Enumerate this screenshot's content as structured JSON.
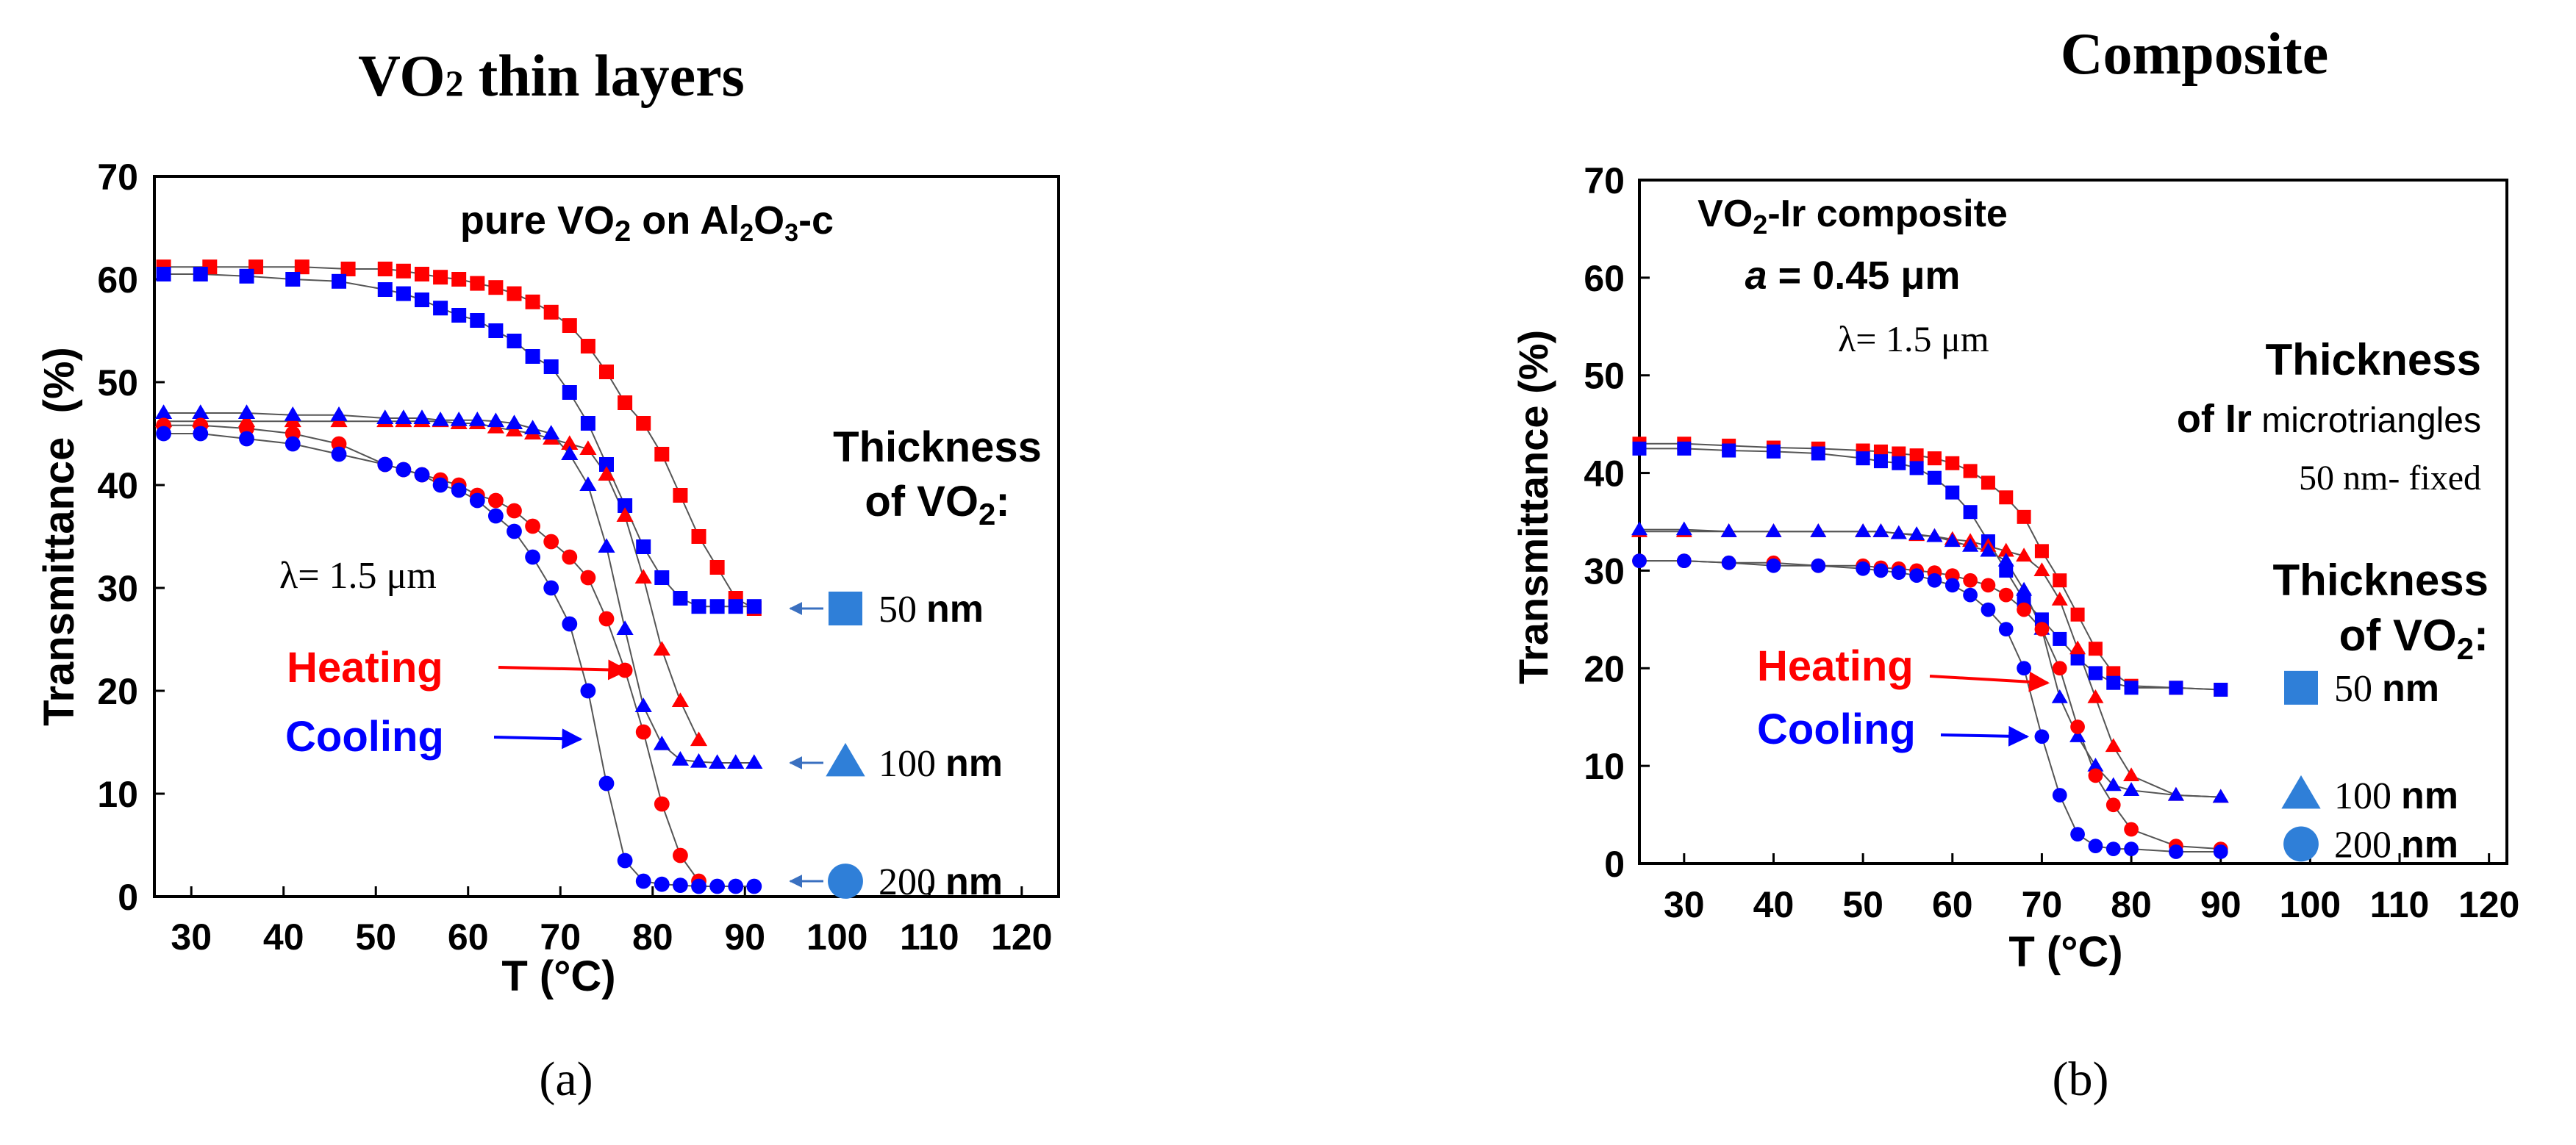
{
  "colors": {
    "heating": "#ff0000",
    "cooling": "#0000ff",
    "legend_marker": "#2f7fd8",
    "legend_arrow": "#3a70c0",
    "connector": "#555555",
    "axis": "#000000"
  },
  "chart_data": [
    {
      "type": "scatter",
      "panel_title_main": "VO",
      "panel_title_sub": "2",
      "panel_title_rest": " thin layers",
      "panel_label": "(a)",
      "xlabel": "T (°C)",
      "ylabel": "Transmittance  (%)",
      "xlim": [
        26,
        124
      ],
      "ylim": [
        0,
        70
      ],
      "x_ticks": [
        30,
        40,
        50,
        60,
        70,
        80,
        90,
        100,
        110,
        120
      ],
      "y_ticks": [
        0,
        10,
        20,
        30,
        40,
        50,
        60,
        70
      ],
      "annotation_main": "pure VO",
      "annotation_sub2": "2",
      "annotation_mid": " on Al",
      "annotation_sub2b": "2",
      "annotation_o": "O",
      "annotation_sub3": "3",
      "annotation_end": "-c",
      "lambda_label": "λ= 1.5 μm",
      "heating_label": "Heating",
      "cooling_label": "Cooling",
      "thickness_title_1": "Thickness",
      "thickness_title_2": "of VO",
      "thickness_title_sub": "2",
      "thickness_title_end": ":",
      "legend": [
        {
          "marker": "square",
          "label": "50 nm",
          "y": 28
        },
        {
          "marker": "triangle",
          "label": "100 nm",
          "y": 13
        },
        {
          "marker": "circle",
          "label": "200 nm",
          "y": 1.5
        }
      ],
      "heating_arrow_target": [
        78.3,
        22
      ],
      "cooling_arrow_target": [
        73.3,
        15.3
      ],
      "series": [
        {
          "name": "50 nm heating",
          "marker": "square",
          "color": "heating",
          "x": [
            27,
            32,
            37,
            42,
            47,
            51,
            53,
            55,
            57,
            59,
            61,
            63,
            65,
            67,
            69,
            71,
            73,
            75,
            77,
            79,
            81,
            83,
            85,
            87,
            89,
            91
          ],
          "y": [
            61.2,
            61.2,
            61.2,
            61.2,
            61,
            61,
            60.8,
            60.5,
            60.2,
            60,
            59.6,
            59.2,
            58.6,
            57.8,
            56.8,
            55.5,
            53.5,
            51,
            48,
            46,
            43,
            39,
            35,
            32,
            29,
            28
          ]
        },
        {
          "name": "50 nm cooling",
          "marker": "square",
          "color": "cooling",
          "x": [
            27,
            31,
            36,
            41,
            46,
            51,
            53,
            55,
            57,
            59,
            61,
            63,
            65,
            67,
            69,
            71,
            73,
            75,
            77,
            79,
            81,
            83,
            85,
            87,
            89,
            91
          ],
          "y": [
            60.5,
            60.5,
            60.3,
            60,
            59.8,
            59,
            58.6,
            58,
            57.2,
            56.5,
            56,
            55,
            54,
            52.5,
            51.5,
            49,
            46,
            42,
            38,
            34,
            31,
            29,
            28.2,
            28.2,
            28.2,
            28.2
          ]
        },
        {
          "name": "100 nm heating",
          "marker": "triangle",
          "color": "heating",
          "x": [
            27,
            31,
            36,
            41,
            46,
            51,
            53,
            55,
            57,
            59,
            61,
            63,
            65,
            67,
            69,
            71,
            73,
            75,
            77,
            79,
            81,
            83,
            85
          ],
          "y": [
            46.2,
            46.2,
            46.2,
            46.2,
            46.2,
            46.2,
            46.2,
            46.2,
            46.2,
            46,
            46,
            45.6,
            45.3,
            45,
            44.5,
            44,
            43.5,
            41,
            37,
            31,
            24,
            19,
            15.2
          ]
        },
        {
          "name": "100 nm cooling",
          "marker": "triangle",
          "color": "cooling",
          "x": [
            27,
            31,
            36,
            41,
            46,
            51,
            53,
            55,
            57,
            59,
            61,
            63,
            65,
            67,
            69,
            71,
            73,
            75,
            77,
            79,
            81,
            83,
            85,
            87,
            89,
            91
          ],
          "y": [
            47,
            47,
            47,
            46.8,
            46.8,
            46.5,
            46.5,
            46.5,
            46.3,
            46.3,
            46.3,
            46.2,
            46,
            45.5,
            45,
            43,
            40,
            34,
            26,
            18.5,
            14.8,
            13.3,
            13.1,
            13,
            13,
            13
          ]
        },
        {
          "name": "200 nm heating",
          "marker": "circle",
          "color": "heating",
          "x": [
            27,
            31,
            36,
            41,
            46,
            51,
            53,
            55,
            57,
            59,
            61,
            63,
            65,
            67,
            69,
            71,
            73,
            75,
            77,
            79,
            81,
            83,
            85
          ],
          "y": [
            45.8,
            45.8,
            45.5,
            45,
            44,
            42,
            41.5,
            41,
            40.5,
            40,
            39,
            38.5,
            37.5,
            36,
            34.5,
            33,
            31,
            27,
            22,
            16,
            9,
            4,
            1.5
          ]
        },
        {
          "name": "200 nm cooling",
          "marker": "circle",
          "color": "cooling",
          "x": [
            27,
            31,
            36,
            41,
            46,
            51,
            53,
            55,
            57,
            59,
            61,
            63,
            65,
            67,
            69,
            71,
            73,
            75,
            77,
            79,
            81,
            83,
            85,
            87,
            89,
            91
          ],
          "y": [
            45,
            45,
            44.5,
            44,
            43,
            42,
            41.5,
            41,
            40,
            39.5,
            38.5,
            37,
            35.5,
            33,
            30,
            26.5,
            20,
            11,
            3.5,
            1.5,
            1.2,
            1.1,
            1,
            1,
            1,
            1
          ]
        }
      ]
    },
    {
      "type": "scatter",
      "panel_title": "Composite",
      "panel_label": "(b)",
      "xlabel": "T (°C)",
      "ylabel": "Transmittance (%)",
      "xlim": [
        25,
        122
      ],
      "ylim": [
        0,
        70
      ],
      "x_ticks": [
        30,
        40,
        50,
        60,
        70,
        80,
        90,
        100,
        110,
        120
      ],
      "y_ticks": [
        0,
        10,
        20,
        30,
        40,
        50,
        60,
        70
      ],
      "annotation_main": "VO",
      "annotation_sub": "2",
      "annotation_end": "-Ir composite",
      "a_italic": "a",
      "a_value": " = 0.45 μm",
      "lambda_label": "λ= 1.5 μm",
      "thickness_ir_title": "Thickness",
      "thickness_ir_line2_a": "of Ir",
      "thickness_ir_line2_b": " microtriangles",
      "thickness_ir_line3": "50 nm- fixed",
      "heating_label": "Heating",
      "cooling_label": "Cooling",
      "thickness_title_1": "Thickness",
      "thickness_title_2": "of VO",
      "thickness_title_sub": "2",
      "thickness_title_end": ":",
      "legend": [
        {
          "marker": "square",
          "label": "50 nm",
          "y": 18
        },
        {
          "marker": "triangle",
          "label": "100 nm",
          "y": 7
        },
        {
          "marker": "circle",
          "label": "200 nm",
          "y": 2
        }
      ],
      "heating_arrow_target": [
        71.8,
        18.5
      ],
      "cooling_arrow_target": [
        69.5,
        13
      ],
      "series": [
        {
          "name": "50 nm heating",
          "marker": "square",
          "color": "heating",
          "x": [
            25,
            30,
            35,
            40,
            45,
            50,
            52,
            54,
            56,
            58,
            60,
            62,
            64,
            66,
            68,
            70,
            72,
            74,
            76,
            78,
            80,
            85,
            90
          ],
          "y": [
            43,
            43,
            42.8,
            42.6,
            42.5,
            42.3,
            42.2,
            42,
            41.8,
            41.5,
            41,
            40.2,
            39,
            37.5,
            35.5,
            32,
            29,
            25.5,
            22,
            19.5,
            18.2,
            18,
            17.8
          ]
        },
        {
          "name": "50 nm cooling",
          "marker": "square",
          "color": "cooling",
          "x": [
            25,
            30,
            35,
            40,
            45,
            50,
            52,
            54,
            56,
            58,
            60,
            62,
            64,
            66,
            68,
            70,
            72,
            74,
            76,
            78,
            80,
            85,
            90
          ],
          "y": [
            42.5,
            42.5,
            42.3,
            42.2,
            42,
            41.5,
            41.2,
            41,
            40.5,
            39.5,
            38,
            36,
            33,
            30,
            27,
            25,
            23,
            21,
            19.5,
            18.5,
            18,
            18,
            17.8
          ]
        },
        {
          "name": "100 nm heating",
          "marker": "triangle",
          "color": "heating",
          "x": [
            25,
            30,
            35,
            40,
            45,
            50,
            52,
            54,
            56,
            58,
            60,
            62,
            64,
            66,
            68,
            70,
            72,
            74,
            76,
            78,
            80,
            85,
            90
          ],
          "y": [
            34,
            34,
            34,
            34,
            34,
            34,
            34,
            33.8,
            33.6,
            33.5,
            33.2,
            33,
            32.5,
            32,
            31.5,
            30,
            27,
            22,
            17,
            12,
            9,
            7,
            6.8
          ]
        },
        {
          "name": "100 nm cooling",
          "marker": "triangle",
          "color": "cooling",
          "x": [
            25,
            30,
            35,
            40,
            45,
            50,
            52,
            54,
            56,
            58,
            60,
            62,
            64,
            66,
            68,
            70,
            72,
            74,
            76,
            78,
            80,
            85,
            90
          ],
          "y": [
            34.2,
            34.2,
            34,
            34,
            34,
            34,
            34,
            33.8,
            33.7,
            33.5,
            33,
            32.5,
            32,
            31,
            28,
            24,
            17,
            13,
            10,
            8,
            7.5,
            7,
            6.8
          ]
        },
        {
          "name": "200 nm heating",
          "marker": "circle",
          "color": "heating",
          "x": [
            25,
            30,
            35,
            40,
            45,
            50,
            52,
            54,
            56,
            58,
            60,
            62,
            64,
            66,
            68,
            70,
            72,
            74,
            76,
            78,
            80,
            85,
            90
          ],
          "y": [
            31,
            31,
            30.8,
            30.8,
            30.5,
            30.5,
            30.3,
            30.2,
            30,
            29.8,
            29.5,
            29,
            28.5,
            27.5,
            26,
            24,
            20,
            14,
            9,
            6,
            3.5,
            1.8,
            1.5
          ]
        },
        {
          "name": "200 nm cooling",
          "marker": "circle",
          "color": "cooling",
          "x": [
            25,
            30,
            35,
            40,
            45,
            50,
            52,
            54,
            56,
            58,
            60,
            62,
            64,
            66,
            68,
            70,
            72,
            74,
            76,
            78,
            80,
            85,
            90
          ],
          "y": [
            31,
            31,
            30.8,
            30.5,
            30.5,
            30.2,
            30,
            29.8,
            29.5,
            29,
            28.5,
            27.5,
            26,
            24,
            20,
            13,
            7,
            3,
            1.8,
            1.5,
            1.5,
            1.2,
            1.2
          ]
        }
      ]
    }
  ]
}
